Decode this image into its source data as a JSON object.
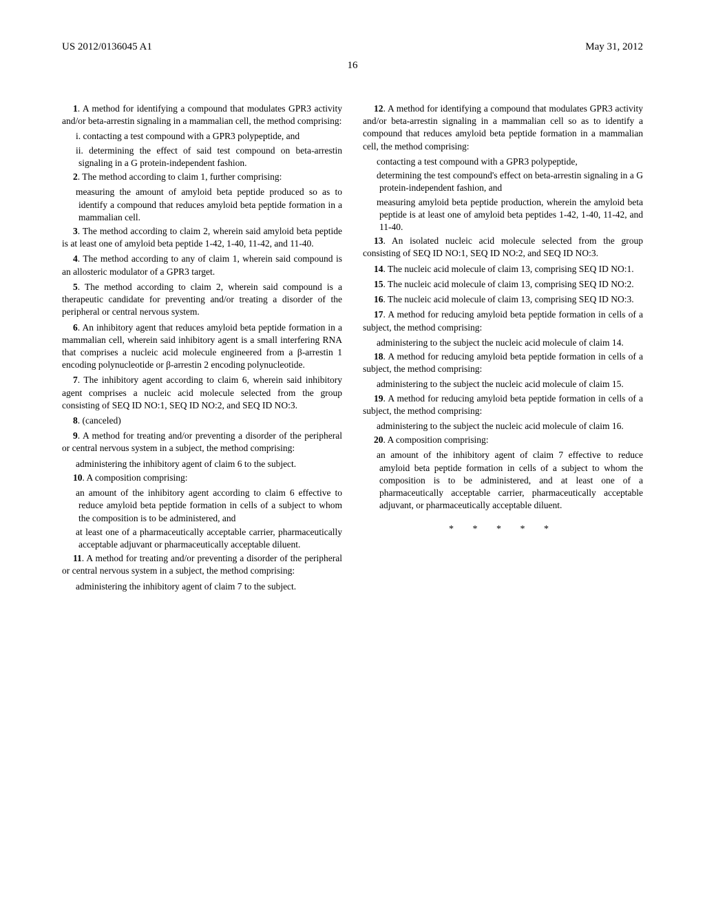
{
  "header": {
    "left": "US 2012/0136045 A1",
    "right": "May 31, 2012"
  },
  "pageNumber": "16",
  "leftColumn": {
    "c1_intro": "1. A method for identifying a compound that modulates GPR3 activity and/or beta-arrestin signaling in a mammalian cell, the method comprising:",
    "c1_i": "i. contacting a test compound with a GPR3 polypeptide, and",
    "c1_ii": "ii. determining the effect of said test compound on beta-arrestin signaling in a G protein-independent fashion.",
    "c2_intro": "2. The method according to claim 1, further comprising:",
    "c2_sub": "measuring the amount of amyloid beta peptide produced so as to identify a compound that reduces amyloid beta peptide formation in a mammalian cell.",
    "c3": "3. The method according to claim 2, wherein said amyloid beta peptide is at least one of amyloid beta peptide 1-42, 1-40, 11-42, and 11-40.",
    "c4": "4. The method according to any of claim 1, wherein said compound is an allosteric modulator of a GPR3 target.",
    "c5": "5. The method according to claim 2, wherein said compound is a therapeutic candidate for preventing and/or treating a disorder of the peripheral or central nervous system.",
    "c6": "6. An inhibitory agent that reduces amyloid beta peptide formation in a mammalian cell, wherein said inhibitory agent is a small interfering RNA that comprises a nucleic acid molecule engineered from a β-arrestin 1 encoding polynucleotide or β-arrestin 2 encoding polynucleotide.",
    "c7": "7. The inhibitory agent according to claim 6, wherein said inhibitory agent comprises a nucleic acid molecule selected from the group consisting of SEQ ID NO:1, SEQ ID NO:2, and SEQ ID NO:3.",
    "c8": "8. (canceled)",
    "c9_intro": "9. A method for treating and/or preventing a disorder of the peripheral or central nervous system in a subject, the method comprising:",
    "c9_sub": "administering the inhibitory agent of claim 6 to the subject.",
    "c10_intro": "10. A composition comprising:",
    "c10_a": "an amount of the inhibitory agent according to claim 6 effective to reduce amyloid beta peptide formation in cells of a subject to whom the composition is to be administered, and",
    "c10_b": "at least one of a pharmaceutically acceptable carrier, pharmaceutically acceptable adjuvant or pharmaceutically acceptable diluent.",
    "c11_intro": "11. A method for treating and/or preventing a disorder of the peripheral or central nervous system in a subject, the method comprising:",
    "c11_sub": "administering the inhibitory agent of claim 7 to the subject."
  },
  "rightColumn": {
    "c12_intro": "12. A method for identifying a compound that modulates GPR3 activity and/or beta-arrestin signaling in a mammalian cell so as to identify a compound that reduces amyloid beta peptide formation in a mammalian cell, the method comprising:",
    "c12_a": "contacting a test compound with a GPR3 polypeptide,",
    "c12_b": "determining the test compound's effect on beta-arrestin signaling in a G protein-independent fashion, and",
    "c12_c": "measuring amyloid beta peptide production, wherein the amyloid beta peptide is at least one of amyloid beta peptides 1-42, 1-40, 11-42, and 11-40.",
    "c13": "13. An isolated nucleic acid molecule selected from the group consisting of SEQ ID NO:1, SEQ ID NO:2, and SEQ ID NO:3.",
    "c14": "14. The nucleic acid molecule of claim 13, comprising SEQ ID NO:1.",
    "c15": "15. The nucleic acid molecule of claim 13, comprising SEQ ID NO:2.",
    "c16": "16. The nucleic acid molecule of claim 13, comprising SEQ ID NO:3.",
    "c17_intro": "17. A method for reducing amyloid beta peptide formation in cells of a subject, the method comprising:",
    "c17_sub": "administering to the subject the nucleic acid molecule of claim 14.",
    "c18_intro": "18. A method for reducing amyloid beta peptide formation in cells of a subject, the method comprising:",
    "c18_sub": "administering to the subject the nucleic acid molecule of claim 15.",
    "c19_intro": "19. A method for reducing amyloid beta peptide formation in cells of a subject, the method comprising:",
    "c19_sub": "administering to the subject the nucleic acid molecule of claim 16.",
    "c20_intro": "20. A composition comprising:",
    "c20_sub": "an amount of the inhibitory agent of claim 7 effective to reduce amyloid beta peptide formation in cells of a subject to whom the composition is to be administered, and at least one of a pharmaceutically acceptable carrier, pharmaceutically acceptable adjuvant, or pharmaceutically acceptable diluent."
  },
  "endMarks": "* * * * *"
}
